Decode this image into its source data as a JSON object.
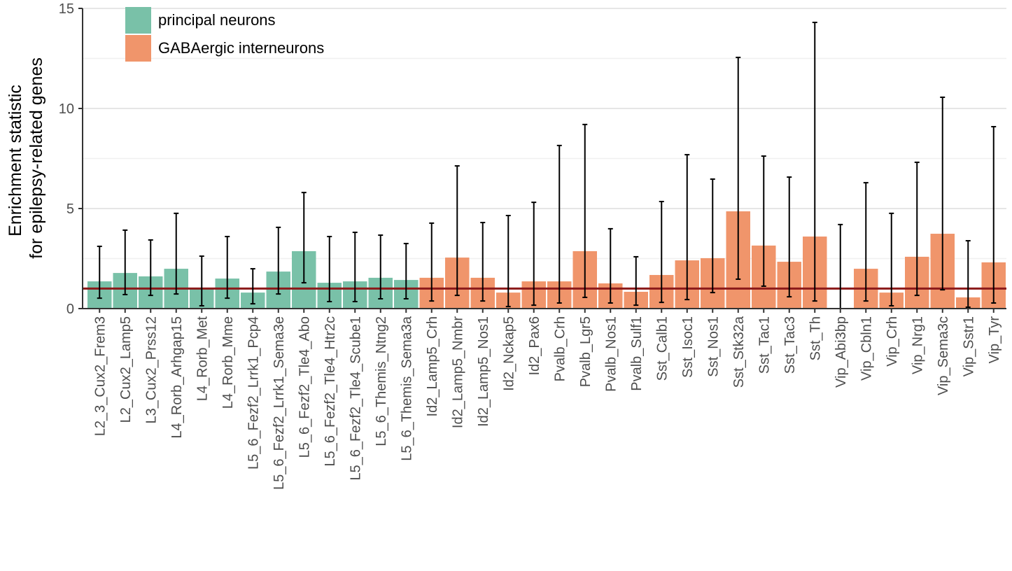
{
  "chart_data": {
    "type": "bar",
    "y_label_lines": [
      "Enrichment statistic",
      "for epilepsy-related genes"
    ],
    "categories": [
      "L2_3_Cux2_Frem3",
      "L2_Cux2_Lamp5",
      "L3_Cux2_Prss12",
      "L4_Rorb_Arhgap15",
      "L4_Rorb_Met",
      "L4_Rorb_Mme",
      "L5_6_Fezf2_Lrrk1_Pcp4",
      "L5_6_Fezf2_Lrrk1_Sema3e",
      "L5_6_Fezf2_Tle4_Abo",
      "L5_6_Fezf2_Tle4_Htr2c",
      "L5_6_Fezf2_Tle4_Scube1",
      "L5_6_Themis_Ntng2",
      "L5_6_Themis_Sema3a",
      "Id2_Lamp5_Crh",
      "Id2_Lamp5_Nmbr",
      "Id2_Lamp5_Nos1",
      "Id2_Nckap5",
      "Id2_Pax6",
      "Pvalb_Crh",
      "Pvalb_Lgr5",
      "Pvalb_Nos1",
      "Pvalb_Sulf1",
      "Sst_Calb1",
      "Sst_Isoc1",
      "Sst_Nos1",
      "Sst_Stk32a",
      "Sst_Tac1",
      "Sst_Tac3",
      "Sst_Th",
      "Vip_Abi3bp",
      "Vip_Cbln1",
      "Vip_Crh",
      "Vip_Nrg1",
      "Vip_Sema3c",
      "Vip_Sstr1",
      "Vip_Tyr"
    ],
    "series": [
      {
        "name": "principal neurons",
        "color": "#79c1a8",
        "values": [
          1.36,
          1.78,
          1.61,
          1.99,
          0.98,
          1.5,
          0.8,
          1.85,
          2.87,
          1.29,
          1.36,
          1.54,
          1.43,
          null,
          null,
          null,
          null,
          null,
          null,
          null,
          null,
          null,
          null,
          null,
          null,
          null,
          null,
          null,
          null,
          null,
          null,
          null,
          null,
          null,
          null,
          null
        ],
        "lower": [
          0.52,
          0.7,
          0.66,
          0.73,
          0.14,
          0.52,
          0.24,
          0.73,
          1.29,
          0.35,
          0.35,
          0.49,
          0.49,
          null,
          null,
          null,
          null,
          null,
          null,
          null,
          null,
          null,
          null,
          null,
          null,
          null,
          null,
          null,
          null,
          null,
          null,
          null,
          null,
          null,
          null,
          null
        ],
        "upper": [
          3.11,
          3.92,
          3.43,
          4.76,
          2.62,
          3.6,
          1.99,
          4.06,
          5.8,
          3.6,
          3.81,
          3.67,
          3.25,
          null,
          null,
          null,
          null,
          null,
          null,
          null,
          null,
          null,
          null,
          null,
          null,
          null,
          null,
          null,
          null,
          null,
          null,
          null,
          null,
          null,
          null,
          null
        ]
      },
      {
        "name": "GABAergic interneurons",
        "color": "#f0956b",
        "values": [
          null,
          null,
          null,
          null,
          null,
          null,
          null,
          null,
          null,
          null,
          null,
          null,
          null,
          1.54,
          2.55,
          1.54,
          0.8,
          1.36,
          1.36,
          2.87,
          1.26,
          0.84,
          1.68,
          2.41,
          2.52,
          4.86,
          3.15,
          2.34,
          3.6,
          0,
          1.99,
          0.8,
          2.59,
          3.74,
          0.56,
          2.31
        ],
        "lower": [
          null,
          null,
          null,
          null,
          null,
          null,
          null,
          null,
          null,
          null,
          null,
          null,
          null,
          0.38,
          0.66,
          0.38,
          0.1,
          0.17,
          0.28,
          0.56,
          0.28,
          0.17,
          0.31,
          0.45,
          0.8,
          1.47,
          1.12,
          0.59,
          0.38,
          0,
          0.38,
          0.14,
          0.66,
          0.94,
          0.07,
          0.28
        ],
        "upper": [
          null,
          null,
          null,
          null,
          null,
          null,
          null,
          null,
          null,
          null,
          null,
          null,
          null,
          4.27,
          7.13,
          4.3,
          4.65,
          5.31,
          8.15,
          9.2,
          3.99,
          2.59,
          5.35,
          7.69,
          6.47,
          12.55,
          7.62,
          6.57,
          14.3,
          4.2,
          6.29,
          4.76,
          7.31,
          10.56,
          3.39,
          9.09
        ]
      }
    ],
    "reference_line": 1,
    "reference_color": "#8b1a1a",
    "ylim": [
      0,
      15
    ],
    "yticks": [
      0,
      5,
      10,
      15
    ],
    "minor_grid": [
      2.5,
      7.5,
      12.5
    ],
    "grid": true,
    "legend": "top-left"
  }
}
